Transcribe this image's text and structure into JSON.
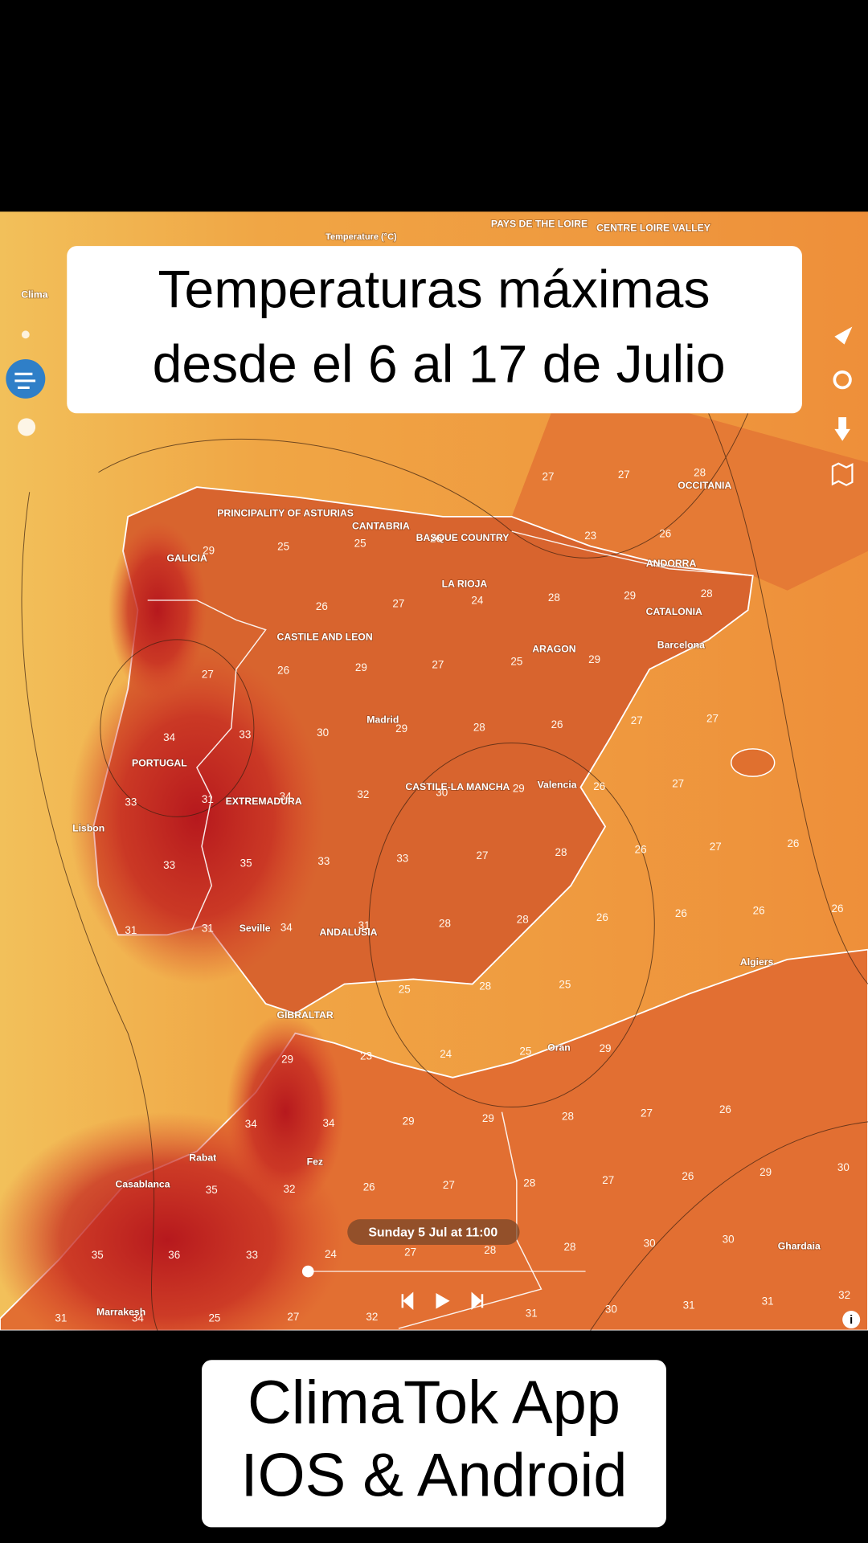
{
  "captions": {
    "top_lines": [
      "Temperaturas máximas",
      "desde el 6 al 17 de Julio"
    ],
    "bottom_lines": [
      "ClimaTok App",
      "IOS & Android"
    ]
  },
  "map": {
    "header": "Temperature (°C)",
    "timestamp": "Sunday 5 Jul at 11:00",
    "places": [
      "Clima",
      "PAYS DE THE LOIRE",
      "CENTRE LOIRE VALLEY",
      "OCCITANIA",
      "ANDORRA",
      "GALICIA",
      "PRINCIPALITY OF ASTURIAS",
      "CANTABRIA",
      "BASQUE COUNTRY",
      "LA RIOJA",
      "CASTILE AND LEON",
      "ARAGON",
      "CATALONIA",
      "Barcelona",
      "Madrid",
      "PORTUGAL",
      "EXTREMADURA",
      "Lisbon",
      "CASTILE-LA MANCHA",
      "Valencia",
      "Seville",
      "ANDALUSIA",
      "GIBRALTAR",
      "Algiers",
      "Oran",
      "Rabat",
      "Fez",
      "Casablanca",
      "Marrakesh",
      "Ghardaia"
    ],
    "temperatures": [
      29,
      25,
      25,
      26,
      26,
      27,
      24,
      28,
      29,
      28,
      27,
      27,
      28,
      26,
      23,
      27,
      26,
      29,
      27,
      25,
      29,
      34,
      33,
      30,
      29,
      28,
      26,
      33,
      31,
      34,
      32,
      30,
      29,
      26,
      33,
      35,
      33,
      33,
      27,
      28,
      31,
      31,
      34,
      31,
      28,
      28,
      26,
      25,
      28,
      25,
      29,
      23,
      24,
      25,
      29,
      34,
      34,
      29,
      29,
      28,
      27,
      26,
      35,
      32,
      26,
      27,
      28,
      27,
      26,
      29,
      30,
      35,
      36,
      33,
      24,
      27,
      28,
      28,
      30,
      30,
      31,
      34,
      25,
      27,
      32,
      31,
      30,
      31,
      31,
      32,
      27,
      27,
      27,
      27,
      26,
      26,
      26,
      26,
      26
    ]
  }
}
